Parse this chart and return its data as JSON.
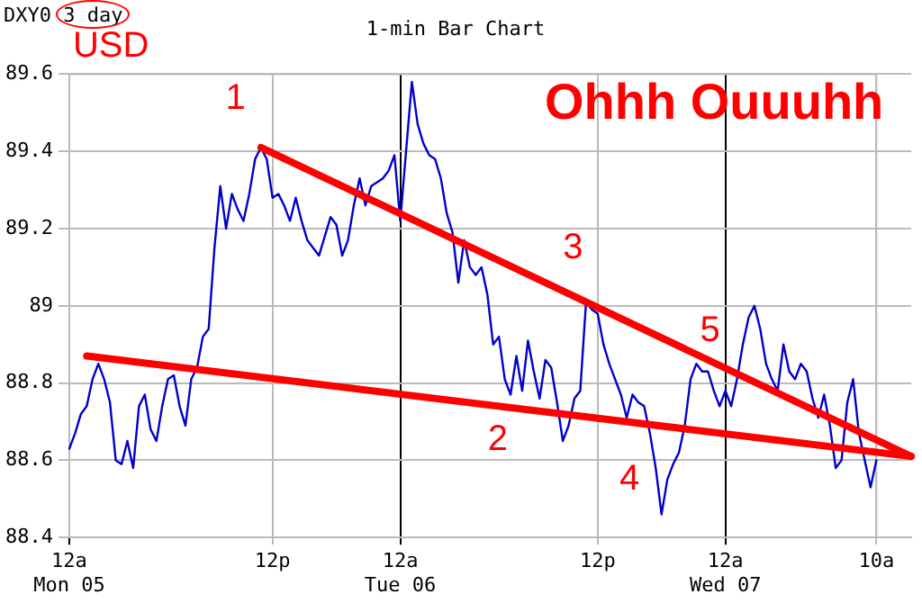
{
  "chart_data": {
    "type": "line",
    "title": "1-min Bar Chart",
    "subtitle": "DXY0 3 day",
    "categories": [
      "12a\nMon 05",
      null,
      null,
      null,
      null,
      null,
      null,
      null,
      null,
      null,
      null,
      null,
      null,
      null,
      null,
      null,
      null,
      null,
      null,
      null,
      null,
      null,
      null,
      null,
      null,
      null,
      null,
      null,
      null,
      null,
      null,
      null,
      null,
      null,
      null,
      "12p",
      null,
      null,
      null,
      null,
      null,
      null,
      null,
      null,
      null,
      null,
      null,
      null,
      null,
      null,
      null,
      null,
      null,
      null,
      null,
      null,
      null,
      "12a\nTue 06",
      null,
      null,
      null,
      null,
      null,
      null,
      null,
      null,
      null,
      null,
      null,
      null,
      null,
      null,
      null,
      null,
      null,
      null,
      null,
      null,
      null,
      null,
      null,
      null,
      null,
      null,
      null,
      null,
      null,
      null,
      null,
      null,
      null,
      "12p",
      null,
      null,
      null,
      null,
      null,
      null,
      null,
      null,
      null,
      null,
      null,
      null,
      null,
      null,
      null,
      null,
      null,
      null,
      null,
      null,
      null,
      "12a\nWed 07",
      null,
      null,
      null,
      null,
      null,
      null,
      null,
      null,
      null,
      null,
      null,
      null,
      null,
      null,
      null,
      null,
      null,
      null,
      null,
      null,
      null,
      null,
      null,
      null,
      null,
      "10a",
      null,
      null,
      null,
      null,
      null,
      null
    ],
    "ylim": [
      88.4,
      89.6
    ],
    "yticks": [
      88.4,
      88.6,
      88.8,
      89,
      89.2,
      89.4,
      89.6
    ],
    "grid": true,
    "marker": "none",
    "line_style": "solid",
    "series": [
      {
        "color": "#0000cc",
        "values": [
          88.63,
          88.67,
          88.72,
          88.74,
          88.81,
          88.85,
          88.81,
          88.75,
          88.6,
          88.59,
          88.65,
          88.58,
          88.74,
          88.77,
          88.68,
          88.65,
          88.74,
          88.81,
          88.82,
          88.74,
          88.69,
          88.81,
          88.84,
          88.92,
          88.94,
          89.15,
          89.31,
          89.2,
          89.29,
          89.25,
          89.22,
          89.29,
          89.38,
          89.41,
          89.38,
          89.28,
          89.29,
          89.26,
          89.22,
          89.28,
          89.22,
          89.17,
          89.15,
          89.13,
          89.18,
          89.23,
          89.21,
          89.13,
          89.17,
          89.26,
          89.33,
          89.26,
          89.31,
          89.32,
          89.33,
          89.35,
          89.39,
          89.22,
          89.4,
          89.58,
          89.47,
          89.42,
          89.39,
          89.38,
          89.33,
          89.24,
          89.19,
          89.06,
          89.17,
          89.1,
          89.08,
          89.1,
          89.03,
          88.9,
          88.92,
          88.81,
          88.77,
          88.87,
          88.78,
          88.91,
          88.83,
          88.76,
          88.86,
          88.84,
          88.75,
          88.65,
          88.69,
          88.76,
          88.78,
          89.01,
          88.99,
          88.98,
          88.9,
          88.85,
          88.81,
          88.77,
          88.71,
          88.77,
          88.75,
          88.74,
          88.67,
          88.58,
          88.46,
          88.55,
          88.59,
          88.62,
          88.69,
          88.81,
          88.85,
          88.83,
          88.83,
          88.78,
          88.74,
          88.78,
          88.74,
          88.81,
          88.9,
          88.97,
          89.0,
          88.94,
          88.85,
          88.81,
          88.78,
          88.9,
          88.83,
          88.81,
          88.85,
          88.83,
          88.76,
          88.71,
          88.77,
          88.69,
          88.58,
          88.6,
          88.75,
          88.81,
          88.67,
          88.6,
          88.53,
          88.6,
          null,
          null,
          null,
          null,
          null,
          null
        ]
      },
      {
        "color": "#ff0000",
        "values": [
          null,
          null,
          null,
          null,
          null,
          null,
          null,
          null,
          null,
          null,
          null,
          null,
          null,
          null,
          null,
          null,
          null,
          null,
          null,
          null,
          null,
          null,
          null,
          null,
          null,
          null,
          null,
          null,
          null,
          null,
          null,
          null,
          null,
          89.41,
          null,
          null,
          null,
          null,
          null,
          null,
          null,
          null,
          null,
          null,
          null,
          null,
          null,
          null,
          null,
          null,
          null,
          null,
          null,
          null,
          null,
          null,
          null,
          null,
          null,
          null,
          null,
          null,
          null,
          null,
          null,
          null,
          null,
          null,
          null,
          null,
          null,
          null,
          null,
          null,
          null,
          null,
          null,
          null,
          null,
          null,
          null,
          null,
          null,
          null,
          null,
          null,
          null,
          null,
          null,
          null,
          null,
          null,
          null,
          null,
          null,
          null,
          null,
          null,
          null,
          null,
          null,
          null,
          null,
          null,
          null,
          null,
          null,
          null,
          null,
          null,
          null,
          null,
          null,
          null,
          null,
          null,
          null,
          null,
          null,
          null,
          null,
          null,
          null,
          null,
          null,
          null,
          null,
          null,
          null,
          null,
          null,
          null,
          null,
          null,
          null,
          null,
          null,
          null,
          null,
          null,
          null,
          null,
          null,
          null,
          null,
          88.61
        ]
      },
      {
        "color": "#ff0000",
        "values": [
          null,
          null,
          null,
          88.87,
          null,
          null,
          null,
          null,
          null,
          null,
          null,
          null,
          null,
          null,
          null,
          null,
          null,
          null,
          null,
          null,
          null,
          null,
          null,
          null,
          null,
          null,
          null,
          null,
          null,
          null,
          null,
          null,
          null,
          null,
          null,
          null,
          null,
          null,
          null,
          null,
          null,
          null,
          null,
          null,
          null,
          null,
          null,
          null,
          null,
          null,
          null,
          null,
          null,
          null,
          null,
          null,
          null,
          null,
          null,
          null,
          null,
          null,
          null,
          null,
          null,
          null,
          null,
          null,
          null,
          null,
          null,
          null,
          null,
          null,
          null,
          null,
          null,
          null,
          null,
          null,
          null,
          null,
          null,
          null,
          null,
          null,
          null,
          null,
          null,
          null,
          null,
          null,
          null,
          null,
          null,
          null,
          null,
          null,
          null,
          null,
          null,
          null,
          null,
          null,
          null,
          null,
          null,
          null,
          null,
          null,
          null,
          null,
          null,
          null,
          null,
          null,
          null,
          null,
          null,
          null,
          null,
          null,
          null,
          null,
          null,
          null,
          null,
          null,
          null,
          null,
          null,
          null,
          null,
          null,
          null,
          null,
          null,
          null,
          null,
          null,
          null,
          null,
          null,
          null,
          null,
          88.61
        ]
      }
    ],
    "annotations": [
      "USD",
      "Ohhh Ouuuhh",
      "1",
      "2",
      "3",
      "4",
      "5"
    ]
  }
}
